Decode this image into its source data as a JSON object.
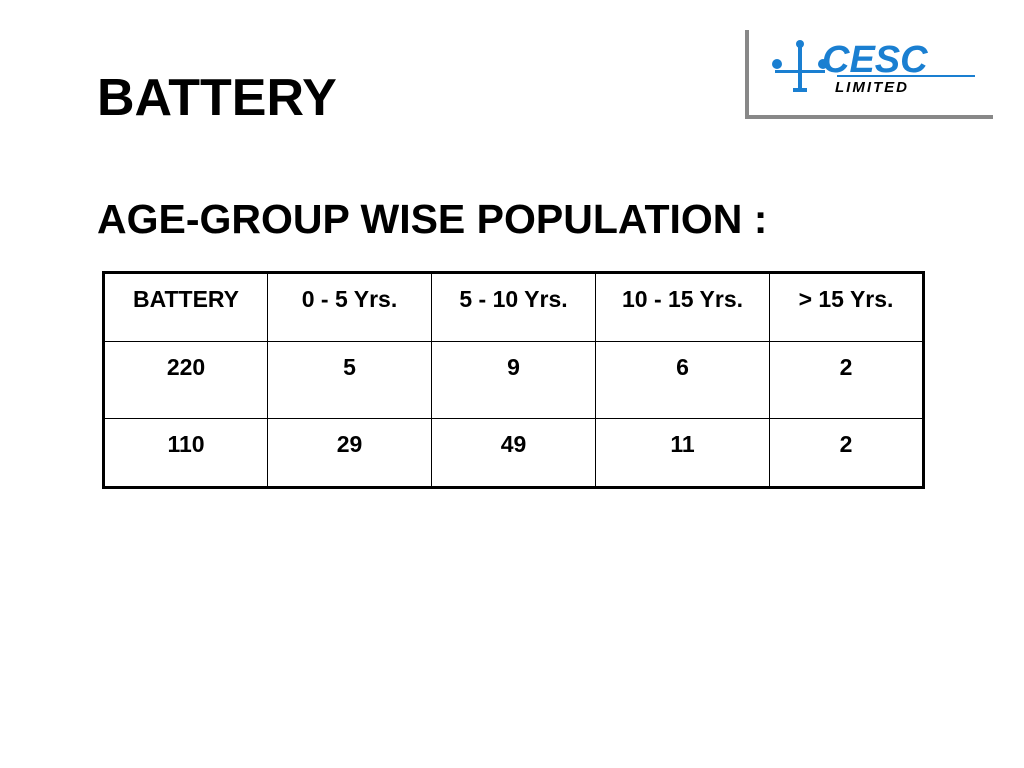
{
  "header": {
    "title": "BATTERY",
    "subtitle": "AGE-GROUP WISE POPULATION :"
  },
  "logo": {
    "name": "CESC",
    "suffix": "LIMITED"
  },
  "table": {
    "columns": [
      "BATTERY",
      "0 - 5 Yrs.",
      "5 - 10 Yrs.",
      "10 - 15 Yrs.",
      "> 15 Yrs."
    ],
    "rows": [
      [
        220,
        5,
        9,
        6,
        2
      ],
      [
        110,
        29,
        49,
        11,
        2
      ]
    ]
  }
}
